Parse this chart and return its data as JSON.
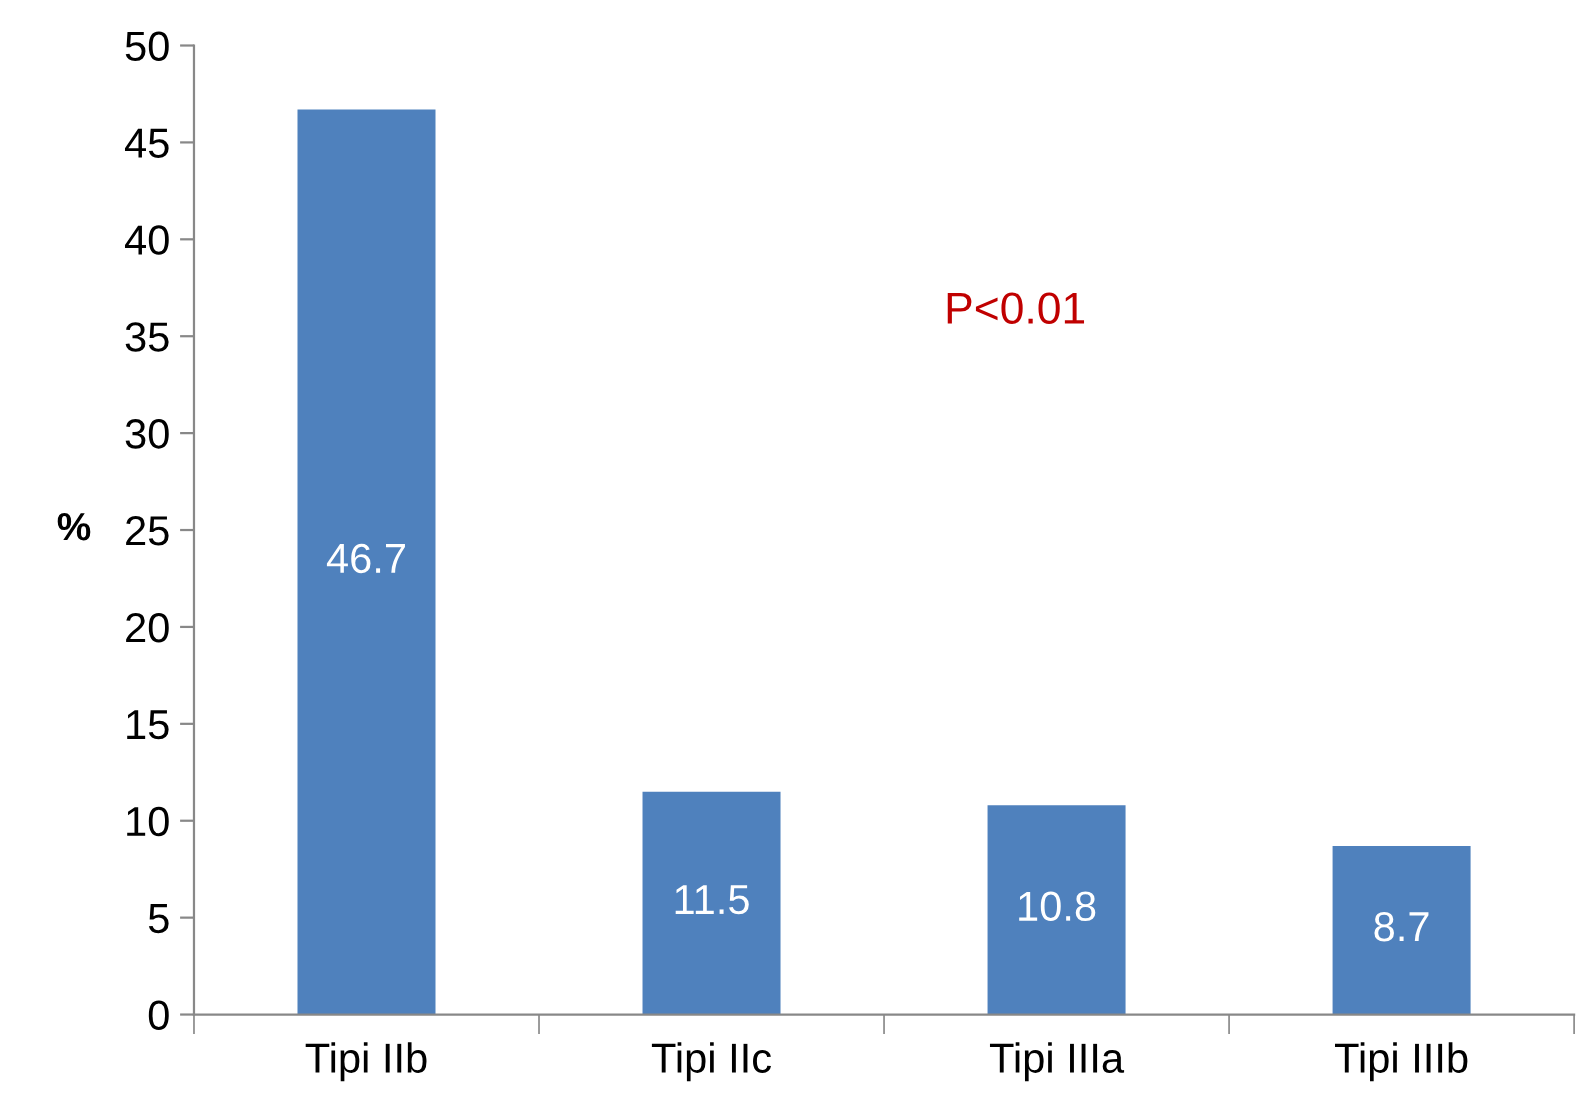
{
  "chart_data": {
    "type": "bar",
    "ylabel": "%",
    "categories": [
      "Tipi IIb",
      "Tipi IIc",
      "Tipi IIIa",
      "Tipi IIIb"
    ],
    "values": [
      46.7,
      11.5,
      10.8,
      8.7
    ],
    "color": "#4f81bd",
    "ylim": [
      0,
      50
    ],
    "yticks": [
      0,
      5,
      10,
      15,
      20,
      25,
      30,
      35,
      40,
      45,
      50
    ],
    "data_labels": true,
    "grid": false,
    "legend": false,
    "annotations": [
      "P<0.01"
    ]
  }
}
